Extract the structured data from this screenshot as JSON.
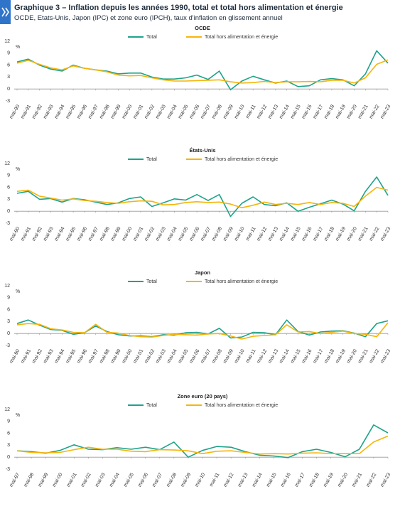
{
  "header": {
    "title": "Graphique 3 – Inflation depuis les années 1990, total et total hors alimentation et énergie",
    "subtitle": "OCDE, Etats-Unis, Japon (IPC) et zone euro (IPCH), taux d'inflation en glissement annuel"
  },
  "chart_data": [
    {
      "type": "line",
      "title": "OCDE",
      "y_label": "%",
      "legend": "top",
      "grid": false,
      "categories": [
        "mai-90",
        "mai-91",
        "mai-92",
        "mai-93",
        "mai-94",
        "mai-95",
        "mai-96",
        "mai-97",
        "mai-98",
        "mai-99",
        "mai-00",
        "mai-01",
        "mai-02",
        "mai-03",
        "mai-04",
        "mai-05",
        "mai-06",
        "mai-07",
        "mai-08",
        "mai-09",
        "mai-10",
        "mai-11",
        "mai-12",
        "mai-13",
        "mai-14",
        "mai-15",
        "mai-16",
        "mai-17",
        "mai-18",
        "mai-19",
        "mai-20",
        "mai-21",
        "mai-22",
        "mai-23"
      ],
      "ylim": [
        -3,
        12
      ],
      "yticks": [
        -3,
        0,
        3,
        6,
        9,
        12
      ],
      "series": [
        {
          "name": "Total",
          "color": "#1ea38b",
          "values": [
            6.8,
            7.5,
            6,
            5,
            4.5,
            6,
            5.2,
            4.8,
            4.5,
            3.8,
            4,
            4,
            3,
            2.5,
            2.5,
            2.8,
            3.5,
            2.4,
            4.5,
            -0.2,
            2,
            3.2,
            2.3,
            1.5,
            2,
            0.6,
            0.8,
            2.3,
            2.6,
            2.3,
            0.8,
            3.8,
            9.6,
            6.5
          ]
        },
        {
          "name": "Total hors alimentation et énergie",
          "color": "#f5b50a",
          "values": [
            6.5,
            7.2,
            6.2,
            5.3,
            4.8,
            5.8,
            5.2,
            4.8,
            4.3,
            3.5,
            3.3,
            3.4,
            2.8,
            2.3,
            2,
            2,
            2.1,
            2.2,
            2.3,
            1.8,
            1.5,
            1.6,
            1.9,
            1.6,
            1.8,
            1.8,
            1.9,
            1.8,
            2.2,
            2.2,
            1.5,
            2.8,
            6.2,
            7.3
          ]
        }
      ]
    },
    {
      "type": "line",
      "title": "États-Unis",
      "y_label": "%",
      "legend": "top",
      "grid": false,
      "categories": [
        "mai-90",
        "mai-91",
        "mai-92",
        "mai-93",
        "mai-94",
        "mai-95",
        "mai-96",
        "mai-97",
        "mai-98",
        "mai-99",
        "mai-00",
        "mai-01",
        "mai-02",
        "mai-03",
        "mai-04",
        "mai-05",
        "mai-06",
        "mai-07",
        "mai-08",
        "mai-09",
        "mai-10",
        "mai-11",
        "mai-12",
        "mai-13",
        "mai-14",
        "mai-15",
        "mai-16",
        "mai-17",
        "mai-18",
        "mai-19",
        "mai-20",
        "mai-21",
        "mai-22",
        "mai-23"
      ],
      "ylim": [
        -3,
        12
      ],
      "yticks": [
        -3,
        0,
        3,
        6,
        9,
        12
      ],
      "series": [
        {
          "name": "Total",
          "color": "#1ea38b",
          "values": [
            4.5,
            5,
            3,
            3.2,
            2.3,
            3.2,
            2.9,
            2.3,
            1.7,
            2.1,
            3.2,
            3.6,
            1.2,
            2.1,
            3.1,
            2.8,
            4.2,
            2.7,
            4.2,
            -1.3,
            2,
            3.6,
            1.7,
            1.4,
            2.1,
            0,
            1,
            1.9,
            2.8,
            1.8,
            0.1,
            5,
            8.6,
            4
          ]
        },
        {
          "name": "Total hors alimentation et énergie",
          "color": "#f5b50a",
          "values": [
            5,
            5.3,
            3.8,
            3.3,
            2.8,
            3.1,
            2.7,
            2.5,
            2.2,
            2,
            2.4,
            2.6,
            2.5,
            1.6,
            1.7,
            2.2,
            2.4,
            2.2,
            2.3,
            1.8,
            0.9,
            1.5,
            2.3,
            1.7,
            2,
            1.7,
            2.2,
            1.7,
            2.2,
            2,
            1.2,
            3.8,
            6,
            5.3
          ]
        }
      ]
    },
    {
      "type": "line",
      "title": "Japon",
      "y_label": "%",
      "legend": "top",
      "grid": false,
      "categories": [
        "mai-90",
        "mai-91",
        "mai-92",
        "mai-93",
        "mai-94",
        "mai-95",
        "mai-96",
        "mai-97",
        "mai-98",
        "mai-99",
        "mai-00",
        "mai-01",
        "mai-02",
        "mai-03",
        "mai-04",
        "mai-05",
        "mai-06",
        "mai-07",
        "mai-08",
        "mai-09",
        "mai-10",
        "mai-11",
        "mai-12",
        "mai-13",
        "mai-14",
        "mai-15",
        "mai-16",
        "mai-17",
        "mai-18",
        "mai-19",
        "mai-20",
        "mai-21",
        "mai-22",
        "mai-23"
      ],
      "ylim": [
        -3,
        12
      ],
      "yticks": [
        -3,
        0,
        3,
        6,
        9,
        12
      ],
      "series": [
        {
          "name": "Total",
          "color": "#1ea38b",
          "values": [
            2.5,
            3.4,
            2.1,
            1,
            0.8,
            -0.2,
            0.2,
            1.9,
            0.5,
            -0.3,
            -0.6,
            -0.6,
            -0.8,
            -0.3,
            -0.4,
            0.2,
            0.3,
            -0.1,
            1.3,
            -1.1,
            -0.9,
            0.3,
            0.2,
            -0.3,
            3.4,
            0.5,
            -0.4,
            0.4,
            0.6,
            0.7,
            0.1,
            -0.8,
            2.5,
            3.2
          ]
        },
        {
          "name": "Total hors alimentation et énergie",
          "color": "#f5b50a",
          "values": [
            2.2,
            2.5,
            2.3,
            1.2,
            0.9,
            0.3,
            0.2,
            2.3,
            0.3,
            0.1,
            -0.5,
            -0.8,
            -0.9,
            -0.5,
            -0.2,
            -0.3,
            -0.4,
            -0.1,
            0,
            -0.6,
            -1.4,
            -0.7,
            -0.5,
            -0.3,
            2.2,
            0.4,
            0.5,
            0,
            0.3,
            0.6,
            0,
            -0.2,
            -0.8,
            2.7
          ]
        }
      ]
    },
    {
      "type": "line",
      "title": "Zone euro (20 pays)",
      "y_label": "%",
      "legend": "top",
      "grid": false,
      "categories": [
        "mai-97",
        "mai-98",
        "mai-99",
        "mai-00",
        "mai-01",
        "mai-02",
        "mai-03",
        "mai-04",
        "mai-05",
        "mai-06",
        "mai-07",
        "mai-08",
        "mai-09",
        "mai-10",
        "mai-11",
        "mai-12",
        "mai-13",
        "mai-14",
        "mai-15",
        "mai-16",
        "mai-17",
        "mai-18",
        "mai-19",
        "mai-20",
        "mai-21",
        "mai-22",
        "mai-23"
      ],
      "ylim": [
        -3,
        12
      ],
      "yticks": [
        -3,
        0,
        3,
        6,
        9,
        12
      ],
      "series": [
        {
          "name": "Total",
          "color": "#1ea38b",
          "values": [
            1.6,
            1.4,
            1,
            1.7,
            3.1,
            2,
            1.9,
            2.4,
            2,
            2.5,
            1.9,
            3.8,
            0,
            1.7,
            2.7,
            2.5,
            1.4,
            0.5,
            0.3,
            -0.1,
            1.4,
            2,
            1.2,
            0.1,
            2,
            8.1,
            6.1
          ]
        },
        {
          "name": "Total hors alimentation et énergie",
          "color": "#f5b50a",
          "values": [
            1.6,
            1.2,
            1.1,
            1.2,
            1.9,
            2.5,
            2,
            2,
            1.5,
            1.4,
            1.9,
            1.8,
            1.6,
            0.9,
            1.5,
            1.6,
            1.2,
            0.8,
            0.9,
            0.8,
            1,
            1.1,
            0.9,
            0.9,
            0.9,
            3.8,
            5.3
          ]
        }
      ]
    }
  ]
}
